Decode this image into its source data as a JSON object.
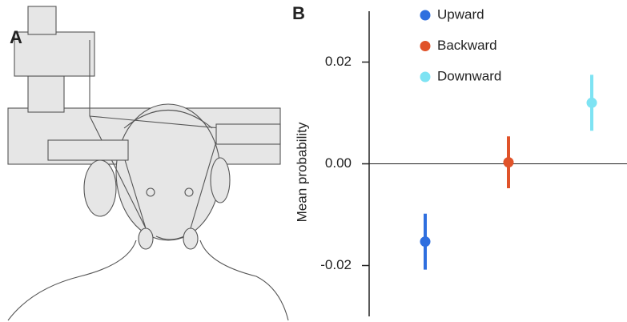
{
  "panel_a": {
    "label": "A"
  },
  "chart_data": {
    "type": "errorpoint",
    "panel_label": "B",
    "y_label": "Mean probability",
    "ylim": [
      -0.03,
      0.03
    ],
    "yticks": [
      -0.02,
      {
        "value": 0,
        "label": "0.00"
      },
      0.02
    ],
    "zero_line": true,
    "series": [
      {
        "name": "Upward",
        "color": "#2f6fdf",
        "values": [
          -0.0153
        ],
        "errors": [
          0.0055
        ]
      },
      {
        "name": "Backward",
        "color": "#e0532a",
        "values": [
          0.0003
        ],
        "errors": [
          0.0051
        ]
      },
      {
        "name": "Downward",
        "color": "#7ee3f3",
        "values": [
          0.012
        ],
        "errors": [
          0.0055
        ]
      }
    ]
  }
}
